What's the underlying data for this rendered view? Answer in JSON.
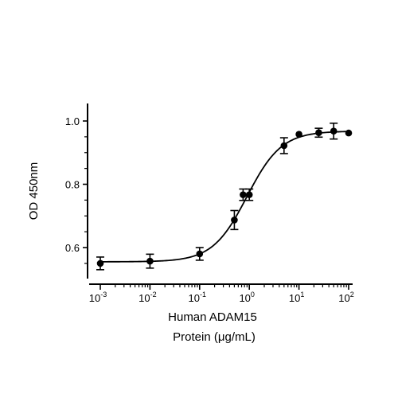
{
  "chart_data": {
    "type": "scatter",
    "title": "",
    "xlabel": "Human ADAM15",
    "xlabel_line2": "Protein (μg/mL)",
    "ylabel": "OD 450nm",
    "x_scale": "log",
    "xlim": [
      0.001,
      100
    ],
    "ylim": [
      0.52,
      1.02
    ],
    "x_ticks": [
      {
        "value": 0.001,
        "base": "10",
        "exp": "-3"
      },
      {
        "value": 0.01,
        "base": "10",
        "exp": "-2"
      },
      {
        "value": 0.1,
        "base": "10",
        "exp": "-1"
      },
      {
        "value": 1,
        "base": "10",
        "exp": "0"
      },
      {
        "value": 10,
        "base": "10",
        "exp": "1"
      },
      {
        "value": 100,
        "base": "10",
        "exp": "2"
      }
    ],
    "y_ticks": [
      {
        "value": 0.6,
        "label": "0.6"
      },
      {
        "value": 0.8,
        "label": "0.8"
      },
      {
        "value": 1.0,
        "label": "1.0"
      }
    ],
    "grid": false,
    "legend": "none",
    "fit": "four-parameter logistic",
    "series": [
      {
        "x": [
          0.001,
          0.01,
          0.1,
          0.5,
          0.75,
          1,
          5,
          10,
          25,
          50,
          100
        ],
        "y": [
          0.55,
          0.557,
          0.58,
          0.687,
          0.767,
          0.767,
          0.922,
          0.958,
          0.963,
          0.968,
          0.962
        ],
        "error": [
          0.02,
          0.022,
          0.02,
          0.03,
          0.018,
          0.018,
          0.025,
          0.004,
          0.014,
          0.025,
          0.004
        ]
      }
    ]
  }
}
